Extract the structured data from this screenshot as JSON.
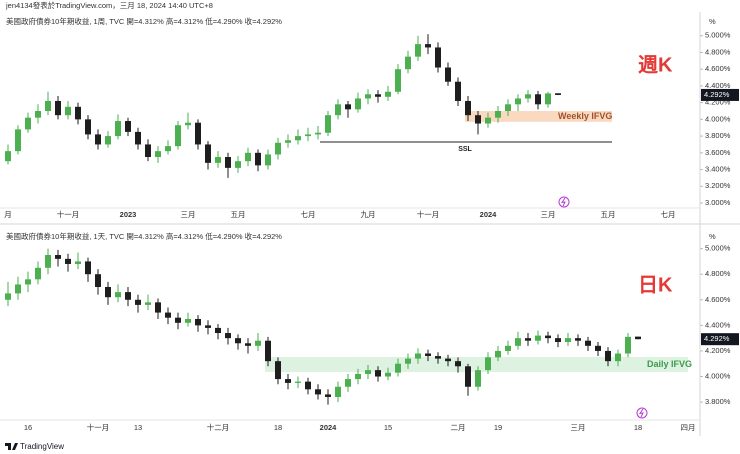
{
  "header": "jen4134發表於TradingView.com，三月 18, 2024 14:40 UTC+8",
  "footer": "TradingView",
  "chart_data": [
    {
      "type": "candlestick",
      "subtitle": "美國政府債券10年期收益, 1周, TVC  開=4.312%  高=4.312%  低=4.290%  收=4.292%",
      "axis_unit": "%",
      "annotation": "週K",
      "up_color": "#4caf50",
      "down_color": "#1e1e1e",
      "ylim": [
        2.94,
        5.26
      ],
      "yticks": [
        {
          "value": 3.0,
          "label": "3.000%"
        },
        {
          "value": 3.2,
          "label": "3.200%"
        },
        {
          "value": 3.4,
          "label": "3.400%"
        },
        {
          "value": 3.6,
          "label": "3.600%"
        },
        {
          "value": 3.8,
          "label": "3.800%"
        },
        {
          "value": 4.0,
          "label": "4.000%"
        },
        {
          "value": 4.2,
          "label": "4.200%"
        },
        {
          "value": 4.4,
          "label": "4.400%"
        },
        {
          "value": 4.6,
          "label": "4.600%"
        },
        {
          "value": 4.8,
          "label": "4.800%"
        },
        {
          "value": 5.0,
          "label": "5.000%"
        }
      ],
      "last_price": {
        "value": 4.292,
        "label": "4.292%"
      },
      "zones": [
        {
          "label": "Weekly IFVG",
          "low": 3.97,
          "high": 4.1,
          "color": "#f8d3b5",
          "text_color": "#a0522d"
        }
      ],
      "levels": [
        {
          "label": "SSL",
          "value": 3.73,
          "color": "#222222"
        }
      ],
      "categories": [
        "月",
        null,
        null,
        null,
        null,
        null,
        "十一月",
        null,
        null,
        null,
        null,
        null,
        "2023",
        null,
        null,
        null,
        null,
        null,
        "三月",
        null,
        null,
        null,
        null,
        "五月",
        null,
        null,
        null,
        null,
        null,
        null,
        "七月",
        null,
        null,
        null,
        null,
        null,
        "九月",
        null,
        null,
        null,
        null,
        null,
        "十一月",
        null,
        null,
        null,
        null,
        null,
        "2024",
        null,
        null,
        null,
        null,
        null,
        "三月",
        null,
        null,
        null,
        null,
        null,
        "五月",
        null,
        null,
        null,
        null,
        null,
        "七月",
        null,
        null,
        null
      ],
      "ohlc": [
        [
          3.5,
          3.7,
          3.46,
          3.62
        ],
        [
          3.62,
          3.93,
          3.58,
          3.88
        ],
        [
          3.88,
          4.08,
          3.84,
          4.02
        ],
        [
          4.02,
          4.18,
          3.95,
          4.1
        ],
        [
          4.1,
          4.33,
          4.05,
          4.22
        ],
        [
          4.22,
          4.28,
          4.0,
          4.05
        ],
        [
          4.05,
          4.22,
          4.0,
          4.15
        ],
        [
          4.15,
          4.2,
          3.94,
          4.0
        ],
        [
          4.0,
          4.05,
          3.76,
          3.82
        ],
        [
          3.82,
          3.88,
          3.64,
          3.7
        ],
        [
          3.7,
          3.86,
          3.66,
          3.8
        ],
        [
          3.8,
          4.06,
          3.76,
          3.98
        ],
        [
          3.98,
          4.02,
          3.8,
          3.85
        ],
        [
          3.85,
          3.9,
          3.64,
          3.7
        ],
        [
          3.7,
          3.76,
          3.5,
          3.55
        ],
        [
          3.55,
          3.68,
          3.48,
          3.62
        ],
        [
          3.62,
          3.75,
          3.58,
          3.68
        ],
        [
          3.68,
          3.98,
          3.64,
          3.93
        ],
        [
          3.93,
          4.08,
          3.88,
          3.96
        ],
        [
          3.96,
          4.0,
          3.64,
          3.7
        ],
        [
          3.7,
          3.74,
          3.4,
          3.48
        ],
        [
          3.48,
          3.62,
          3.42,
          3.55
        ],
        [
          3.55,
          3.6,
          3.3,
          3.42
        ],
        [
          3.42,
          3.56,
          3.36,
          3.5
        ],
        [
          3.5,
          3.66,
          3.44,
          3.6
        ],
        [
          3.6,
          3.64,
          3.38,
          3.45
        ],
        [
          3.45,
          3.64,
          3.4,
          3.58
        ],
        [
          3.58,
          3.78,
          3.52,
          3.72
        ],
        [
          3.72,
          3.82,
          3.66,
          3.75
        ],
        [
          3.75,
          3.88,
          3.7,
          3.8
        ],
        [
          3.8,
          3.9,
          3.74,
          3.82
        ],
        [
          3.82,
          3.92,
          3.76,
          3.84
        ],
        [
          3.84,
          4.1,
          3.8,
          4.05
        ],
        [
          4.05,
          4.24,
          4.0,
          4.18
        ],
        [
          4.18,
          4.22,
          4.02,
          4.12
        ],
        [
          4.12,
          4.32,
          4.08,
          4.25
        ],
        [
          4.25,
          4.36,
          4.18,
          4.3
        ],
        [
          4.3,
          4.35,
          4.2,
          4.27
        ],
        [
          4.27,
          4.4,
          4.22,
          4.33
        ],
        [
          4.33,
          4.66,
          4.3,
          4.6
        ],
        [
          4.6,
          4.82,
          4.55,
          4.75
        ],
        [
          4.75,
          5.0,
          4.7,
          4.9
        ],
        [
          4.9,
          5.02,
          4.78,
          4.86
        ],
        [
          4.86,
          4.92,
          4.56,
          4.62
        ],
        [
          4.62,
          4.68,
          4.4,
          4.45
        ],
        [
          4.45,
          4.5,
          4.16,
          4.22
        ],
        [
          4.22,
          4.28,
          3.98,
          4.05
        ],
        [
          4.05,
          4.1,
          3.82,
          3.95
        ],
        [
          3.95,
          4.08,
          3.9,
          4.02
        ],
        [
          4.02,
          4.16,
          3.96,
          4.1
        ],
        [
          4.1,
          4.24,
          4.04,
          4.18
        ],
        [
          4.18,
          4.3,
          4.1,
          4.25
        ],
        [
          4.25,
          4.35,
          4.2,
          4.3
        ],
        [
          4.3,
          4.34,
          4.12,
          4.18
        ],
        [
          4.18,
          4.33,
          4.14,
          4.31
        ],
        [
          4.312,
          4.312,
          4.29,
          4.292
        ],
        null,
        null,
        null,
        null,
        null,
        null,
        null,
        null,
        null,
        null,
        null,
        null,
        null,
        null
      ]
    },
    {
      "type": "candlestick",
      "subtitle": "美國政府債券10年期收益, 1天, TVC  開=4.312%  高=4.312%  低=4.290%  收=4.292%",
      "axis_unit": "%",
      "annotation": "日K",
      "up_color": "#4caf50",
      "down_color": "#1e1e1e",
      "ylim": [
        3.66,
        5.13
      ],
      "yticks": [
        {
          "value": 3.8,
          "label": "3.800%"
        },
        {
          "value": 4.0,
          "label": "4.000%"
        },
        {
          "value": 4.2,
          "label": "4.200%"
        },
        {
          "value": 4.4,
          "label": "4.400%"
        },
        {
          "value": 4.6,
          "label": "4.600%"
        },
        {
          "value": 4.8,
          "label": "4.800%"
        },
        {
          "value": 5.0,
          "label": "5.000%"
        }
      ],
      "last_price": {
        "value": 4.292,
        "label": "4.292%"
      },
      "zones": [
        {
          "label": "Daily IFVG",
          "low": 4.035,
          "high": 4.153,
          "color": "#d8f0dc",
          "text_color": "#3c9a4a"
        }
      ],
      "levels": [],
      "categories": [
        null,
        null,
        "16",
        null,
        null,
        null,
        null,
        null,
        null,
        "十一月",
        null,
        null,
        null,
        "13",
        null,
        null,
        null,
        null,
        null,
        null,
        null,
        "十二月",
        null,
        null,
        null,
        null,
        null,
        "18",
        null,
        null,
        null,
        null,
        "2024",
        null,
        null,
        null,
        null,
        null,
        "15",
        null,
        null,
        null,
        null,
        null,
        null,
        "二月",
        null,
        null,
        null,
        "19",
        null,
        null,
        null,
        null,
        null,
        null,
        null,
        "三月",
        null,
        null,
        null,
        null,
        null,
        "18",
        null,
        null,
        null,
        null,
        "四月",
        null
      ],
      "ohlc": [
        [
          4.6,
          4.74,
          4.55,
          4.65
        ],
        [
          4.65,
          4.78,
          4.6,
          4.72
        ],
        [
          4.72,
          4.82,
          4.66,
          4.76
        ],
        [
          4.76,
          4.9,
          4.72,
          4.85
        ],
        [
          4.85,
          5.0,
          4.8,
          4.95
        ],
        [
          4.95,
          4.99,
          4.86,
          4.92
        ],
        [
          4.92,
          4.96,
          4.82,
          4.88
        ],
        [
          4.88,
          4.97,
          4.84,
          4.9
        ],
        [
          4.9,
          4.93,
          4.74,
          4.8
        ],
        [
          4.8,
          4.84,
          4.64,
          4.7
        ],
        [
          4.7,
          4.74,
          4.56,
          4.62
        ],
        [
          4.62,
          4.72,
          4.58,
          4.66
        ],
        [
          4.66,
          4.7,
          4.55,
          4.6
        ],
        [
          4.6,
          4.64,
          4.5,
          4.56
        ],
        [
          4.56,
          4.64,
          4.52,
          4.58
        ],
        [
          4.58,
          4.61,
          4.45,
          4.5
        ],
        [
          4.5,
          4.54,
          4.41,
          4.46
        ],
        [
          4.46,
          4.5,
          4.37,
          4.42
        ],
        [
          4.42,
          4.5,
          4.39,
          4.45
        ],
        [
          4.45,
          4.48,
          4.35,
          4.4
        ],
        [
          4.4,
          4.44,
          4.33,
          4.38
        ],
        [
          4.38,
          4.41,
          4.29,
          4.34
        ],
        [
          4.34,
          4.38,
          4.25,
          4.3
        ],
        [
          4.3,
          4.33,
          4.21,
          4.26
        ],
        [
          4.26,
          4.3,
          4.18,
          4.24
        ],
        [
          4.24,
          4.34,
          4.2,
          4.28
        ],
        [
          4.28,
          4.31,
          4.08,
          4.12
        ],
        [
          4.12,
          4.15,
          3.94,
          3.98
        ],
        [
          3.98,
          4.02,
          3.9,
          3.95
        ],
        [
          3.95,
          4.0,
          3.91,
          3.96
        ],
        [
          3.96,
          3.99,
          3.86,
          3.9
        ],
        [
          3.9,
          3.94,
          3.82,
          3.86
        ],
        [
          3.86,
          3.9,
          3.78,
          3.84
        ],
        [
          3.84,
          3.96,
          3.8,
          3.92
        ],
        [
          3.92,
          4.02,
          3.88,
          3.98
        ],
        [
          3.98,
          4.06,
          3.94,
          4.02
        ],
        [
          4.02,
          4.09,
          3.98,
          4.05
        ],
        [
          4.05,
          4.08,
          3.96,
          4.0
        ],
        [
          4.0,
          4.07,
          3.97,
          4.03
        ],
        [
          4.03,
          4.14,
          4.0,
          4.1
        ],
        [
          4.1,
          4.18,
          4.06,
          4.14
        ],
        [
          4.14,
          4.22,
          4.1,
          4.18
        ],
        [
          4.18,
          4.21,
          4.12,
          4.16
        ],
        [
          4.16,
          4.19,
          4.1,
          4.14
        ],
        [
          4.14,
          4.17,
          4.08,
          4.12
        ],
        [
          4.12,
          4.15,
          4.03,
          4.08
        ],
        [
          4.08,
          4.1,
          3.85,
          3.92
        ],
        [
          3.92,
          4.08,
          3.89,
          4.05
        ],
        [
          4.05,
          4.19,
          4.02,
          4.15
        ],
        [
          4.15,
          4.24,
          4.12,
          4.2
        ],
        [
          4.2,
          4.28,
          4.17,
          4.24
        ],
        [
          4.24,
          4.35,
          4.21,
          4.3
        ],
        [
          4.3,
          4.34,
          4.24,
          4.28
        ],
        [
          4.28,
          4.36,
          4.25,
          4.32
        ],
        [
          4.32,
          4.35,
          4.26,
          4.3
        ],
        [
          4.3,
          4.33,
          4.23,
          4.27
        ],
        [
          4.27,
          4.34,
          4.24,
          4.3
        ],
        [
          4.3,
          4.33,
          4.24,
          4.28
        ],
        [
          4.28,
          4.31,
          4.2,
          4.24
        ],
        [
          4.24,
          4.27,
          4.16,
          4.2
        ],
        [
          4.2,
          4.23,
          4.08,
          4.12
        ],
        [
          4.12,
          4.21,
          4.08,
          4.18
        ],
        [
          4.18,
          4.34,
          4.15,
          4.31
        ],
        [
          4.312,
          4.312,
          4.29,
          4.292
        ],
        null,
        null,
        null,
        null,
        null,
        null
      ]
    }
  ]
}
